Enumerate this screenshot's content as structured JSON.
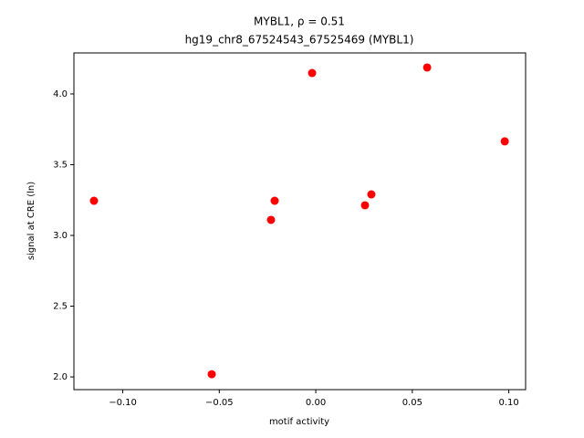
{
  "chart_data": {
    "type": "scatter",
    "title": "MYBL1, ρ = 0.51",
    "subtitle": "hg19_chr8_67524543_67525469 (MYBL1)",
    "x_label": "motif activity",
    "y_label": "signal at CRE (ln)",
    "color": "#ff0000",
    "x": [
      -0.1149,
      -0.0539,
      -0.0232,
      -0.0213,
      -0.0019,
      0.0255,
      0.0288,
      0.0577,
      0.0979
    ],
    "values": [
      3.245,
      2.019,
      3.11,
      3.245,
      4.148,
      3.213,
      3.29,
      4.187,
      3.665
    ],
    "xlim": [
      -0.1253,
      0.1087
    ],
    "ylim": [
      1.91,
      4.29
    ],
    "xticks": [
      {
        "value": -0.1,
        "label": "−0.10"
      },
      {
        "value": -0.05,
        "label": "−0.05"
      },
      {
        "value": 0,
        "label": "0.00"
      },
      {
        "value": 0.05,
        "label": "0.05"
      },
      {
        "value": 0.1,
        "label": "0.10"
      }
    ],
    "yticks": [
      {
        "value": 2,
        "label": "2.0"
      },
      {
        "value": 2.5,
        "label": "2.5"
      },
      {
        "value": 3,
        "label": "3.0"
      },
      {
        "value": 3.5,
        "label": "3.5"
      },
      {
        "value": 4,
        "label": "4.0"
      }
    ],
    "grid": false
  }
}
